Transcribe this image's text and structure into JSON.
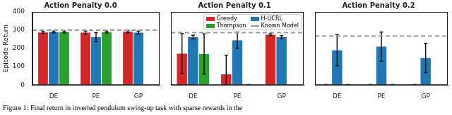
{
  "caption": "Figure 1: Final return in inverted pendulum swing-up task with sparse rewards in the",
  "chart_data": [
    {
      "type": "bar",
      "title": "Action Penalty 0.0",
      "ylabel": "Episode Return",
      "categories": [
        "DE",
        "PE",
        "GP"
      ],
      "series": [
        {
          "name": "Greedy",
          "color": "#d62728",
          "values": [
            288,
            287,
            292
          ],
          "errors": [
            6,
            8,
            6
          ]
        },
        {
          "name": "H-UCRL",
          "color": "#1f77b4",
          "values": [
            290,
            262,
            287
          ],
          "errors": [
            5,
            25,
            8
          ]
        },
        {
          "name": "Thompson",
          "color": "#2ca02c",
          "values": [
            290,
            290,
            null
          ],
          "errors": [
            5,
            5,
            null
          ]
        }
      ],
      "known_model": {
        "name": "Known Model",
        "value": 300
      },
      "ylim": [
        0,
        400
      ],
      "yticks": [
        0,
        100,
        200,
        300,
        400
      ],
      "grid": false
    },
    {
      "type": "bar",
      "title": "Action Penalty 0.1",
      "categories": [
        "DE",
        "PE",
        "GP"
      ],
      "series": [
        {
          "name": "Greedy",
          "color": "#d62728",
          "values": [
            172,
            58,
            275
          ],
          "errors": [
            110,
            105,
            6
          ]
        },
        {
          "name": "H-UCRL",
          "color": "#1f77b4",
          "values": [
            262,
            245,
            262
          ],
          "errors": [
            10,
            45,
            8
          ]
        },
        {
          "name": "Thompson",
          "color": "#2ca02c",
          "values": [
            170,
            2,
            null
          ],
          "errors": [
            110,
            1,
            null
          ]
        }
      ],
      "known_model": {
        "name": "Known Model",
        "value": 287
      },
      "ylim": [
        0,
        400
      ],
      "yticks": [
        0,
        100,
        200,
        300,
        400
      ],
      "grid": false,
      "legend": "upper right",
      "tick_labels": "x"
    },
    {
      "type": "bar",
      "title": "Action Penalty 0.2",
      "categories": [
        "DE",
        "PE",
        "GP"
      ],
      "series": [
        {
          "name": "Greedy",
          "color": "#d62728",
          "values": [
            2,
            2,
            2
          ],
          "errors": [
            1,
            1,
            1
          ]
        },
        {
          "name": "H-UCRL",
          "color": "#1f77b4",
          "values": [
            190,
            210,
            148
          ],
          "errors": [
            85,
            80,
            80
          ]
        },
        {
          "name": "Thompson",
          "color": "#2ca02c",
          "values": [
            2,
            2,
            null
          ],
          "errors": [
            1,
            1,
            null
          ]
        }
      ],
      "known_model": {
        "name": "Known Model",
        "value": 268
      },
      "ylim": [
        0,
        400
      ],
      "yticks": [
        0,
        100,
        200,
        300,
        400
      ],
      "grid": false,
      "tick_labels": "x"
    }
  ]
}
